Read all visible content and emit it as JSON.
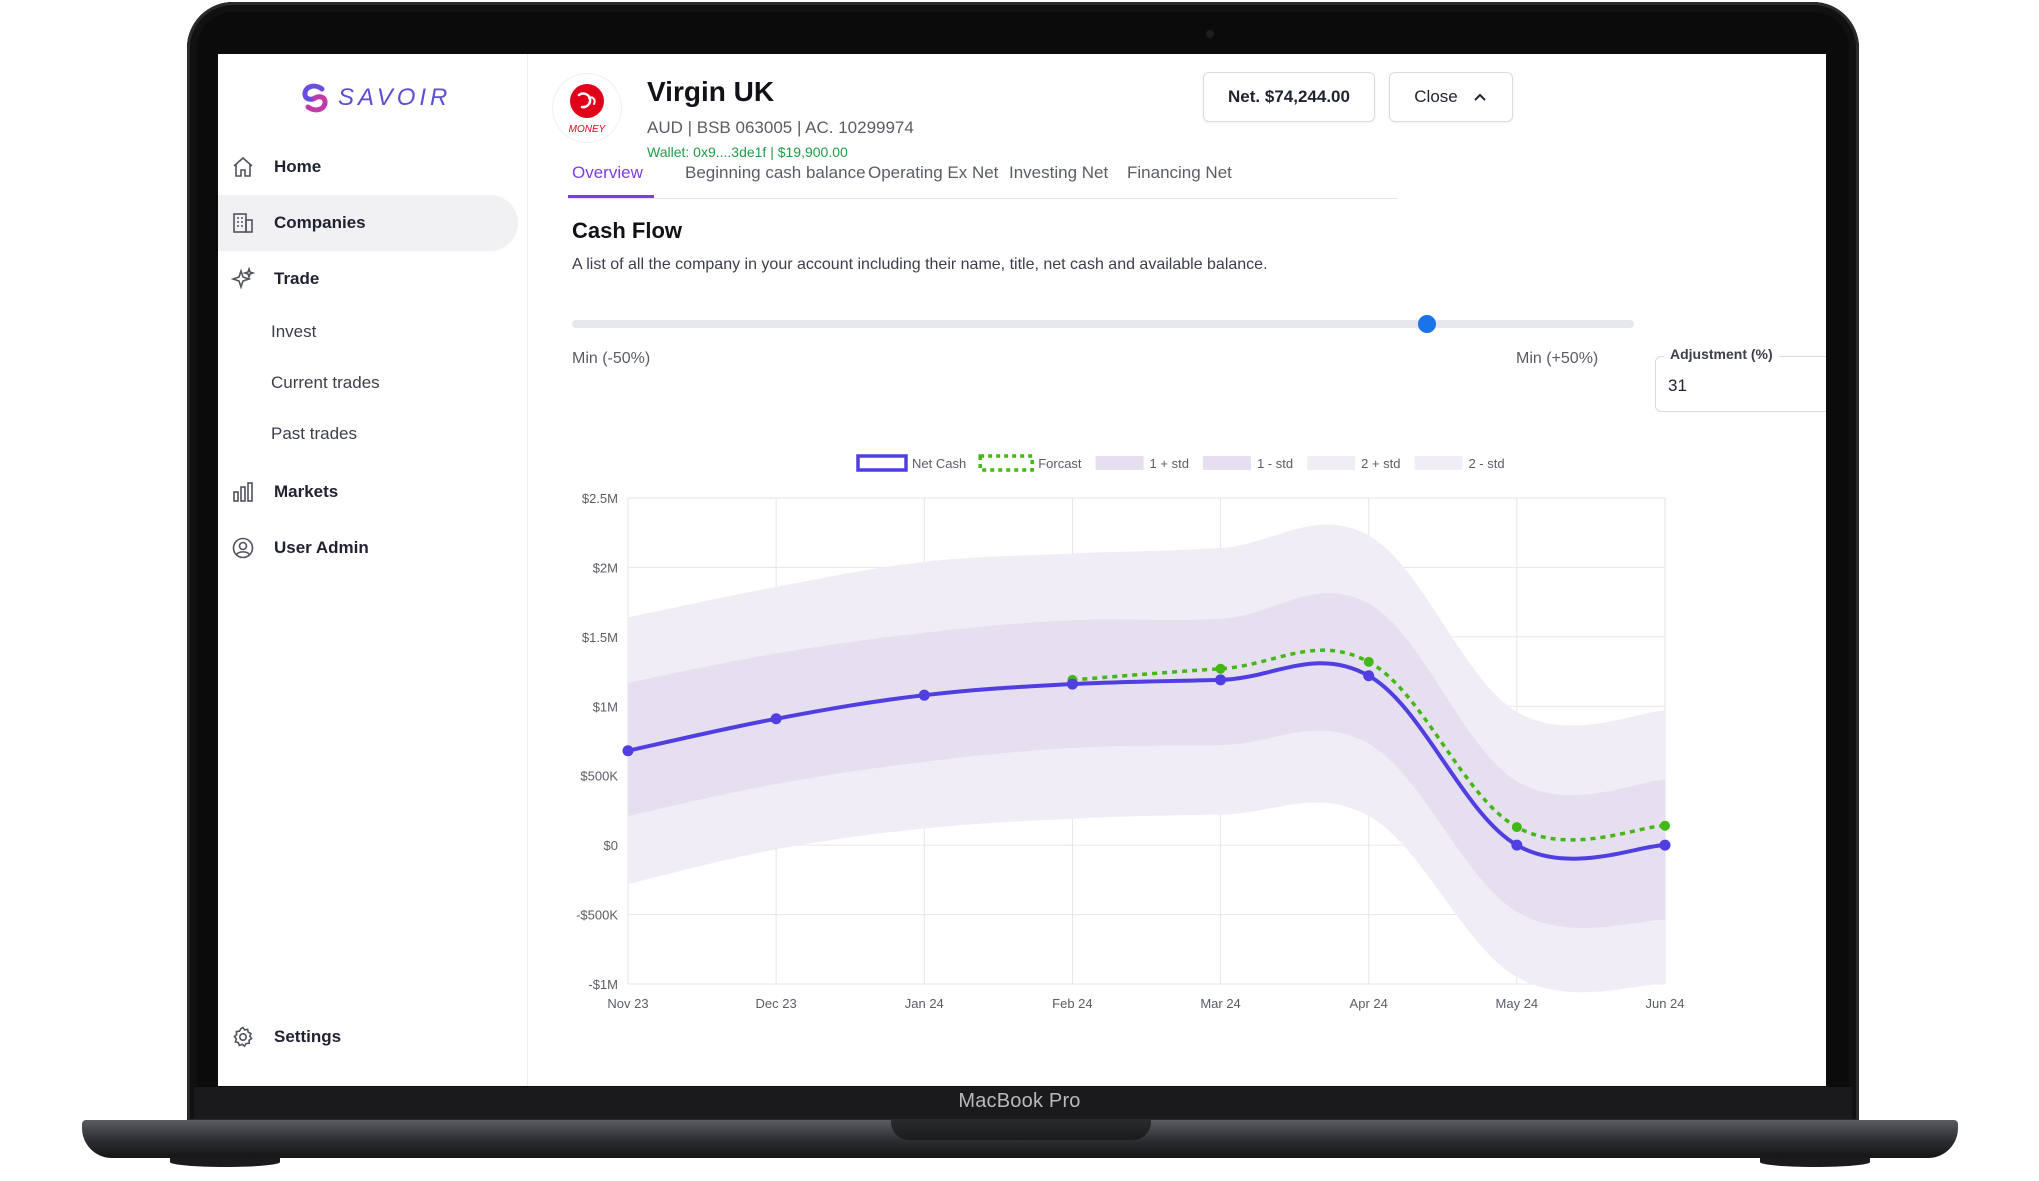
{
  "device": {
    "name": "MacBook Pro"
  },
  "sidebar": {
    "logo_text": "SAVOIR",
    "items": [
      {
        "label": "Home",
        "icon": "home-icon",
        "active": false
      },
      {
        "label": "Companies",
        "icon": "building-icon",
        "active": true
      },
      {
        "label": "Trade",
        "icon": "sparkle-icon",
        "active": false
      },
      {
        "label": "Markets",
        "icon": "bar-chart-icon",
        "active": false
      },
      {
        "label": "User Admin",
        "icon": "user-circle-icon",
        "active": false
      }
    ],
    "trade_sub_items": [
      "Invest",
      "Current trades",
      "Past trades"
    ],
    "settings_label": "Settings"
  },
  "header": {
    "brand_logo_text": "MONEY",
    "company_name": "Virgin UK",
    "company_meta": "AUD | BSB 063005 | AC. 10299974",
    "wallet": "Wallet: 0x9....3de1f | $19,900.00",
    "net_button": "Net. $74,244.00",
    "close_button": "Close"
  },
  "tabs": [
    {
      "label": "Overview",
      "active": true
    },
    {
      "label": "Beginning cash balance",
      "active": false
    },
    {
      "label": "Operating Ex Net",
      "active": false
    },
    {
      "label": "Investing Net",
      "active": false
    },
    {
      "label": "Financing Net",
      "active": false
    }
  ],
  "section": {
    "title": "Cash Flow",
    "description": "A list of all the company in your account including their name, title, net cash and available balance."
  },
  "slider": {
    "min_label": "Min (-50%)",
    "max_label": "Min (+50%)",
    "value_fraction": 0.805
  },
  "adjustment": {
    "label": "Adjustment (%)",
    "value": "31"
  },
  "colors": {
    "accent": "#7b3fe0",
    "net_cash": "#4f3fe0",
    "forecast": "#42b814",
    "band1": "#e6dff0",
    "band2": "#f1edf6",
    "slider_thumb": "#1a73e8",
    "wallet_green": "#1f9d45"
  },
  "chart_data": {
    "type": "line",
    "x": [
      "Nov 23",
      "Dec 23",
      "Jan 24",
      "Feb 24",
      "Mar 24",
      "Apr 24",
      "May 24",
      "Jun 24"
    ],
    "y_ticks": [
      2.5,
      2,
      1.5,
      1,
      0.5,
      0,
      -0.5,
      -1
    ],
    "y_tick_labels": [
      "$2.5M",
      "$2M",
      "$1.5M",
      "$1M",
      "$500K",
      "$0",
      "-$500K",
      "-$1M"
    ],
    "ylim": [
      -1,
      2.5
    ],
    "legend": [
      "Net Cash",
      "Forcast",
      "1 + std",
      "1 - std",
      "2 + std",
      "2 - std"
    ],
    "legend_position": "top-center",
    "grid": true,
    "series": [
      {
        "name": "Net Cash",
        "values": [
          0.68,
          0.91,
          1.08,
          1.16,
          1.19,
          1.22,
          0.0,
          0.0
        ]
      },
      {
        "name": "Forcast",
        "values": [
          null,
          null,
          null,
          1.19,
          1.27,
          1.32,
          0.13,
          0.14
        ]
      }
    ],
    "bands": {
      "plus1": [
        1.17,
        1.38,
        1.53,
        1.62,
        1.63,
        1.74,
        0.46,
        0.47
      ],
      "minus1": [
        0.21,
        0.44,
        0.6,
        0.7,
        0.72,
        0.73,
        -0.48,
        -0.54
      ],
      "plus2": [
        1.64,
        1.86,
        2.04,
        2.1,
        2.14,
        2.23,
        0.96,
        0.97
      ],
      "minus2": [
        -0.28,
        -0.03,
        0.12,
        0.19,
        0.22,
        0.21,
        -0.95,
        -1.0
      ]
    }
  }
}
